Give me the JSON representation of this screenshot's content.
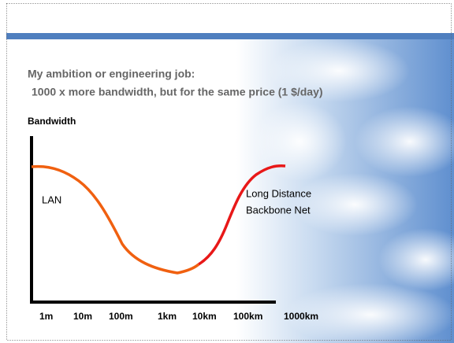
{
  "slide": {
    "heading": [
      "My ambition or engineering job:",
      "1000 x more bandwidth, but for the same price (1 $/day)"
    ],
    "y_axis_label": "Bandwidth",
    "x_labels": [
      "1m",
      "10m",
      "100m",
      "1km",
      "10km",
      "100km",
      "1000km"
    ],
    "annotations": {
      "lan": "LAN",
      "long_distance": [
        "Long Distance",
        "Backbone Net"
      ]
    }
  }
}
